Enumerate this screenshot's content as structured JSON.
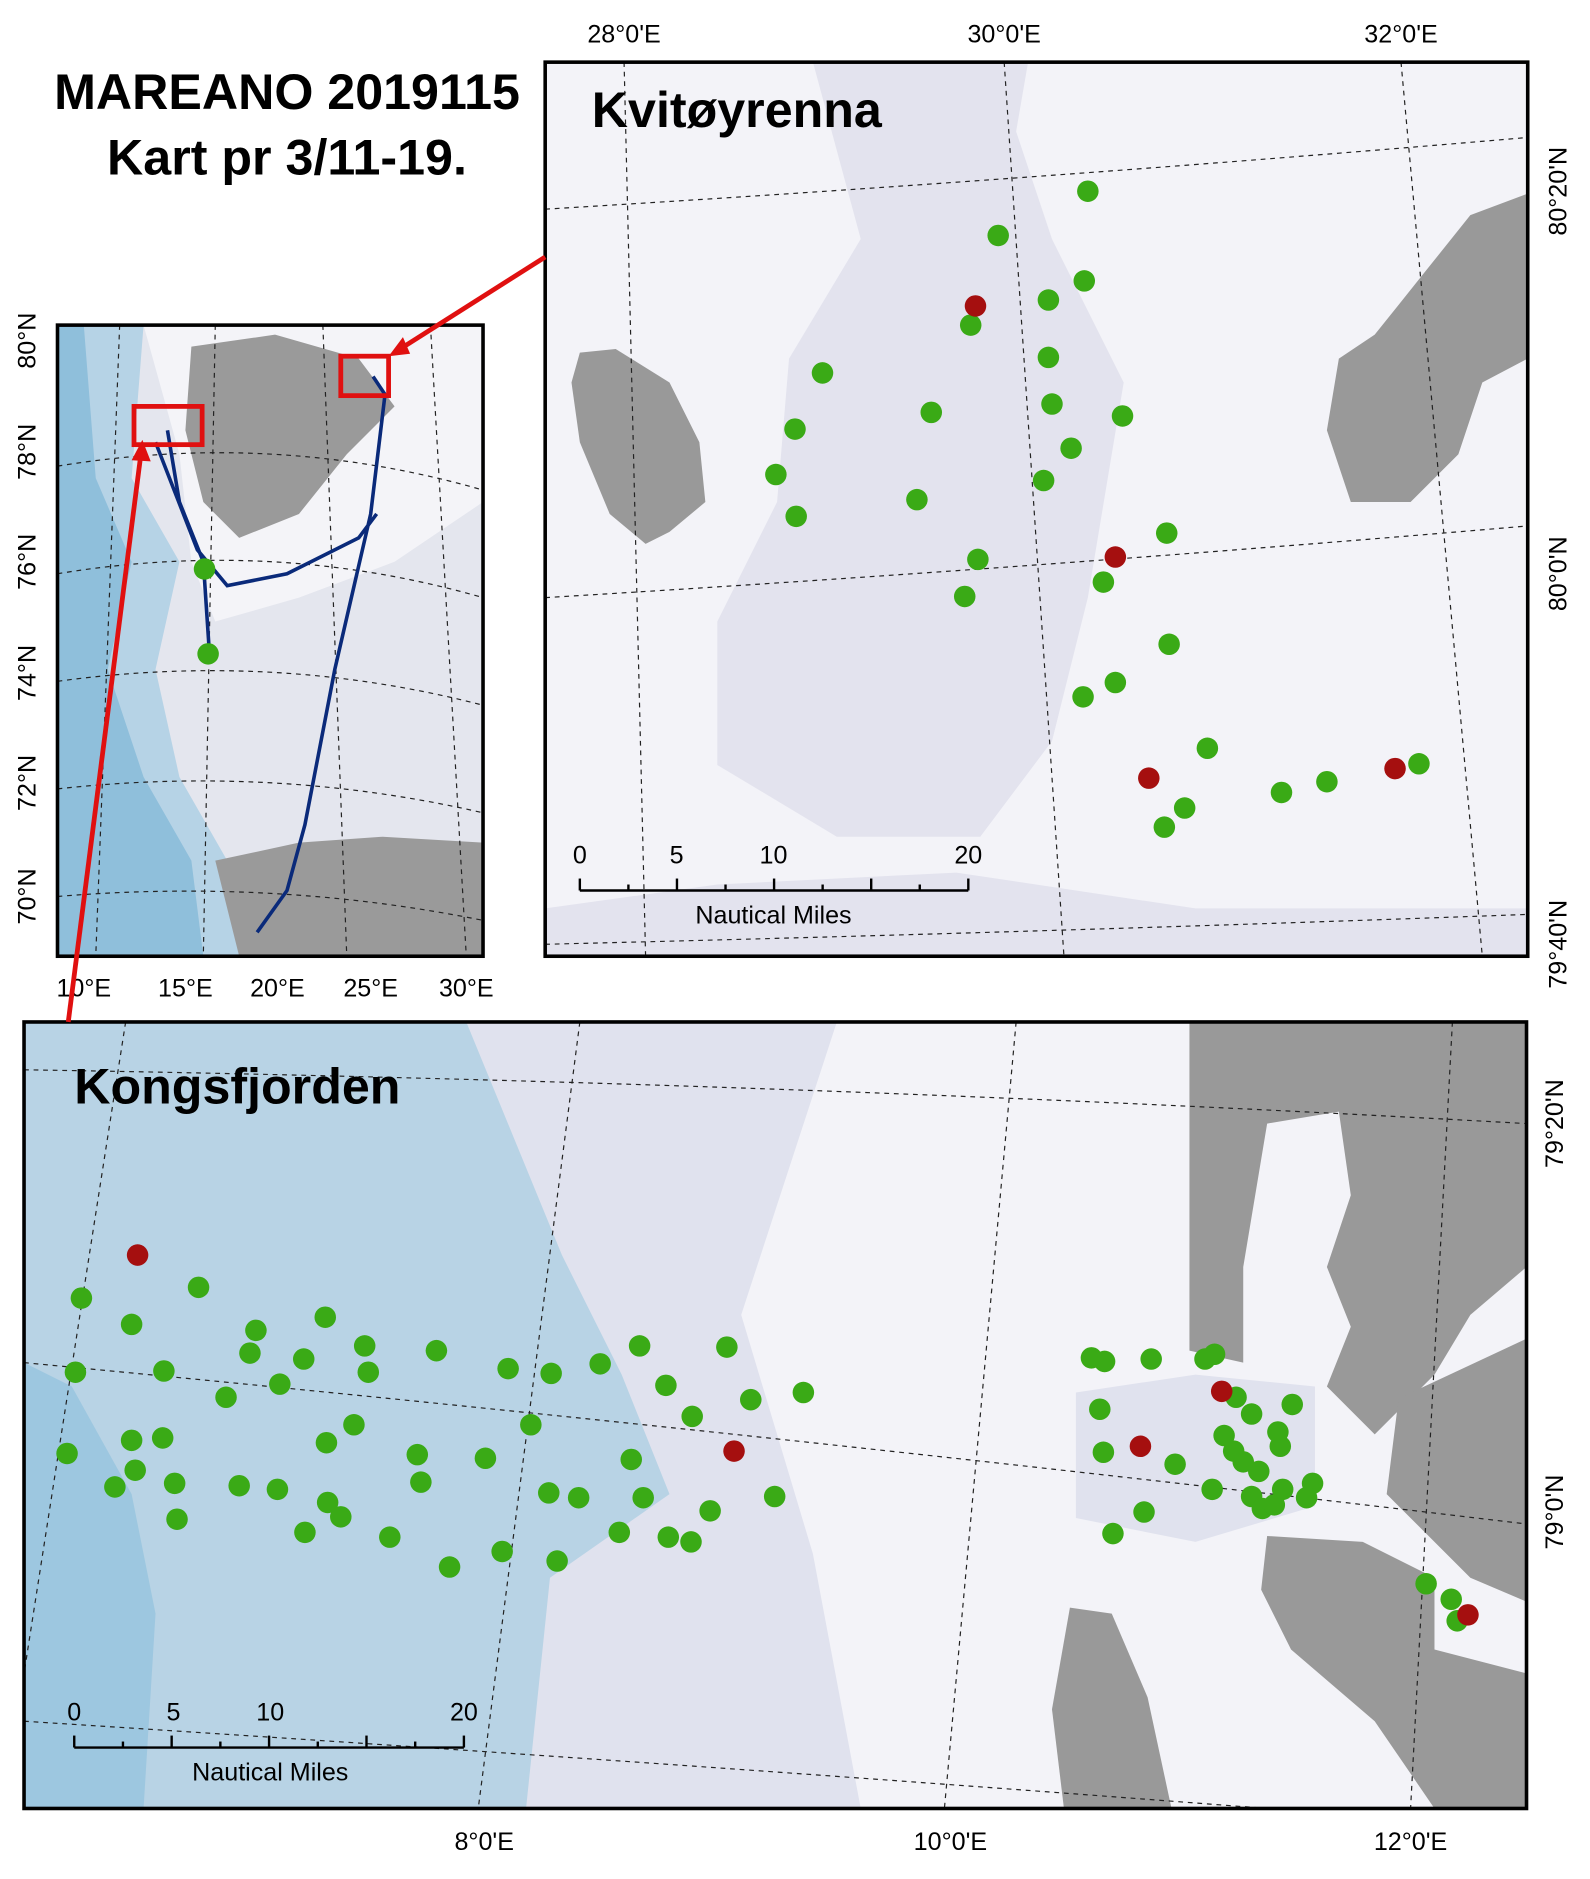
{
  "header": {
    "title": [
      "MAREANO 2019115",
      "Kart pr 3/11-19."
    ]
  },
  "overview": {
    "lat_labels": [
      "80°N",
      "78°N",
      "76°N",
      "74°N",
      "72°N",
      "70°N"
    ],
    "lon_labels": [
      "10°E",
      "15°E",
      "20°E",
      "25°E",
      "30°E"
    ]
  },
  "kvitoyrenna": {
    "title": "Kvitøyrenna",
    "lon_labels": [
      "28°0'E",
      "30°0'E",
      "32°0'E"
    ],
    "lat_labels": [
      "80°20'N",
      "80°0'N",
      "79°40'N"
    ],
    "scale_labels": [
      "0",
      "5",
      "10",
      "20"
    ],
    "scale_unit": "Nautical Miles"
  },
  "kongsfjorden": {
    "title": "Kongsfjorden",
    "lon_labels": [
      "8°0'E",
      "10°0'E",
      "12°0'E"
    ],
    "lat_labels": [
      "79°20'N",
      "79°0'N"
    ],
    "scale_labels": [
      "0",
      "5",
      "10",
      "20"
    ],
    "scale_unit": "Nautical Miles"
  }
}
